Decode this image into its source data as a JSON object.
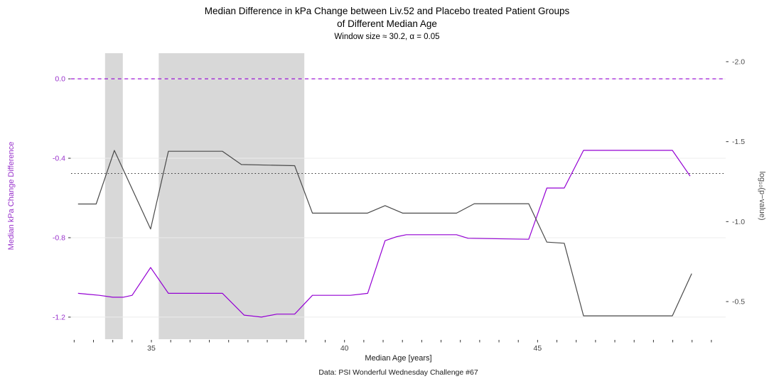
{
  "chart_data": {
    "type": "line",
    "title": "Median Difference in kPa Change between Liv.52 and Placebo treated Patient Groups\nof Different Median Age",
    "subtitle": "Window size ≈ 30.2, α = 0.05",
    "caption": "Data: PSI Wonderful Wednesday Challenge #67",
    "xlabel": "Median Age [years]",
    "x_axis": {
      "domain": [
        32.92,
        49.87
      ],
      "labeled_ticks": [
        35,
        40,
        45
      ],
      "minor_tick_step": 0.5
    },
    "left_axis": {
      "label": "Median kPa Change Difference",
      "ticks": [
        0.0,
        -0.4,
        -0.8,
        -1.2
      ],
      "domain_top": 0.129,
      "domain_bottom": -1.311,
      "text_color": "#9932CC"
    },
    "right_axis": {
      "label": "log₁₀(p−value)",
      "ticks": [
        -2.0,
        -1.5,
        -1.0,
        -0.5
      ],
      "domain_top": -2.053,
      "domain_bottom": -0.265,
      "text_color": "#4D4D4D"
    },
    "reference_lines": [
      {
        "name": "zero-difference-line",
        "axis": "left",
        "value": 0.0,
        "style": "dashed",
        "color": "#9400D3"
      },
      {
        "name": "alpha-significance-line",
        "axis": "right",
        "value": -1.301,
        "style": "dotted",
        "color": "#333333"
      }
    ],
    "significance_bands": [
      [
        33.8,
        34.26
      ],
      [
        35.19,
        38.96
      ]
    ],
    "series": [
      {
        "name": "Median kPa Change Difference",
        "axis": "left",
        "color": "#9400D3",
        "points": [
          [
            33.1,
            -1.08
          ],
          [
            33.65,
            -1.09
          ],
          [
            34.0,
            -1.1
          ],
          [
            34.27,
            -1.1
          ],
          [
            34.5,
            -1.09
          ],
          [
            34.98,
            -0.95
          ],
          [
            35.44,
            -1.08
          ],
          [
            36.84,
            -1.08
          ],
          [
            37.4,
            -1.19
          ],
          [
            37.85,
            -1.2
          ],
          [
            38.25,
            -1.185
          ],
          [
            38.71,
            -1.185
          ],
          [
            39.17,
            -1.09
          ],
          [
            40.15,
            -1.09
          ],
          [
            40.6,
            -1.08
          ],
          [
            41.05,
            -0.815
          ],
          [
            41.35,
            -0.795
          ],
          [
            41.6,
            -0.785
          ],
          [
            42.9,
            -0.785
          ],
          [
            43.2,
            -0.803
          ],
          [
            44.77,
            -0.808
          ],
          [
            45.24,
            -0.55
          ],
          [
            45.69,
            -0.55
          ],
          [
            46.19,
            -0.36
          ],
          [
            48.49,
            -0.36
          ],
          [
            48.95,
            -0.49
          ]
        ]
      },
      {
        "name": "log10(p-value)",
        "axis": "right",
        "color": "#4A4A4A",
        "points": [
          [
            33.1,
            -1.11
          ],
          [
            33.57,
            -1.11
          ],
          [
            34.04,
            -1.445
          ],
          [
            34.98,
            -0.954
          ],
          [
            35.44,
            -1.44
          ],
          [
            36.84,
            -1.44
          ],
          [
            37.33,
            -1.357
          ],
          [
            38.71,
            -1.35
          ],
          [
            39.17,
            -1.053
          ],
          [
            40.59,
            -1.053
          ],
          [
            41.05,
            -1.1
          ],
          [
            41.51,
            -1.053
          ],
          [
            42.9,
            -1.053
          ],
          [
            43.36,
            -1.112
          ],
          [
            44.77,
            -1.112
          ],
          [
            45.24,
            -0.872
          ],
          [
            45.69,
            -0.865
          ],
          [
            46.19,
            -0.411
          ],
          [
            48.49,
            -0.411
          ],
          [
            48.99,
            -0.675
          ]
        ]
      }
    ],
    "colors": {
      "band": "#D8D8D8",
      "grid": "#ECECEC",
      "tick": "#333333",
      "x_tick_label": "#404040"
    }
  }
}
